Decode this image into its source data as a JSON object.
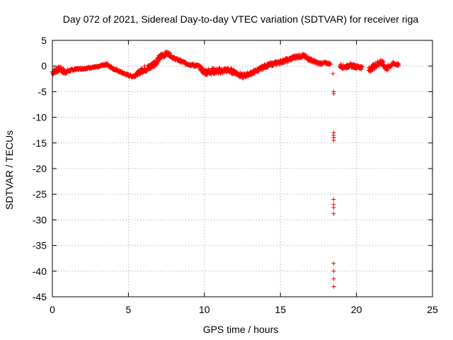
{
  "chart_data": {
    "type": "scatter",
    "title": "Day 072 of 2021, Sidereal Day-to-day VTEC variation (SDTVAR) for receiver riga",
    "xlabel": "GPS time / hours",
    "ylabel": "SDTVAR / TECUs",
    "xlim": [
      0,
      25
    ],
    "ylim": [
      -45,
      5
    ],
    "xticks": [
      0,
      5,
      10,
      15,
      20,
      25
    ],
    "yticks": [
      5,
      0,
      -5,
      -10,
      -15,
      -20,
      -25,
      -30,
      -35,
      -40,
      -45
    ],
    "grid": true,
    "marker": "+",
    "color": "#ff0000",
    "series": [
      {
        "name": "SDTVAR",
        "trend": {
          "x": [
            0.0,
            0.5,
            0.8,
            1.0,
            1.5,
            2.0,
            2.5,
            3.0,
            3.3,
            3.6,
            4.0,
            4.5,
            5.0,
            5.3,
            5.6,
            6.0,
            6.4,
            6.8,
            7.2,
            7.6,
            8.0,
            8.4,
            8.8,
            9.2,
            9.6,
            10.0,
            10.5,
            11.0,
            11.5,
            12.0,
            12.5,
            13.0,
            13.5,
            14.0,
            14.5,
            15.0,
            15.5,
            16.0,
            16.5,
            17.0,
            17.5,
            18.0,
            18.3
          ],
          "y": [
            -1.2,
            -0.5,
            -1.2,
            -1.0,
            -0.6,
            -0.5,
            -0.3,
            -0.2,
            0.2,
            0.3,
            -0.5,
            -1.2,
            -1.8,
            -2.0,
            -1.5,
            -0.6,
            -0.3,
            0.8,
            2.0,
            2.5,
            1.5,
            1.0,
            0.5,
            0.2,
            0.0,
            -1.2,
            -1.0,
            -1.0,
            -0.8,
            -1.2,
            -2.0,
            -1.5,
            -0.8,
            0.0,
            0.4,
            0.8,
            1.2,
            1.8,
            2.0,
            1.2,
            0.5,
            0.6,
            0.4
          ],
          "spread": [
            1.2,
            1.0,
            1.2,
            0.6,
            0.4,
            0.4,
            0.4,
            0.4,
            0.4,
            0.6,
            0.5,
            0.5,
            0.5,
            0.5,
            0.8,
            1.3,
            1.4,
            1.4,
            1.2,
            0.8,
            0.6,
            0.6,
            0.6,
            0.6,
            0.6,
            1.3,
            1.2,
            1.2,
            1.0,
            1.0,
            1.0,
            0.8,
            0.8,
            0.8,
            0.8,
            0.8,
            0.8,
            0.8,
            0.8,
            0.8,
            0.6,
            0.4,
            0.4
          ]
        },
        "trend2": {
          "x": [
            18.9,
            19.2,
            19.6,
            20.0,
            20.4
          ],
          "y": [
            0.0,
            -0.2,
            0.1,
            -0.1,
            -0.3
          ],
          "spread": [
            0.8,
            0.8,
            0.8,
            0.8,
            0.8
          ]
        },
        "trend3": {
          "x": [
            20.8,
            21.2,
            21.6,
            22.0,
            22.4,
            22.8
          ],
          "y": [
            -0.8,
            0.0,
            0.8,
            -0.5,
            0.5,
            0.2
          ],
          "spread": [
            1.0,
            1.2,
            1.4,
            1.0,
            0.6,
            0.5
          ]
        },
        "outliers": [
          {
            "x": 18.45,
            "y": -1.5
          },
          {
            "x": 18.5,
            "y": -5.0
          },
          {
            "x": 18.5,
            "y": -5.4
          },
          {
            "x": 18.5,
            "y": -13.0
          },
          {
            "x": 18.5,
            "y": -13.5
          },
          {
            "x": 18.5,
            "y": -14.0
          },
          {
            "x": 18.5,
            "y": -14.5
          },
          {
            "x": 18.5,
            "y": -26.0
          },
          {
            "x": 18.5,
            "y": -27.0
          },
          {
            "x": 18.5,
            "y": -27.6
          },
          {
            "x": 18.5,
            "y": -28.8
          },
          {
            "x": 18.5,
            "y": -38.5
          },
          {
            "x": 18.5,
            "y": -40.0
          },
          {
            "x": 18.5,
            "y": -41.5
          },
          {
            "x": 18.5,
            "y": -43.0
          }
        ]
      }
    ]
  }
}
